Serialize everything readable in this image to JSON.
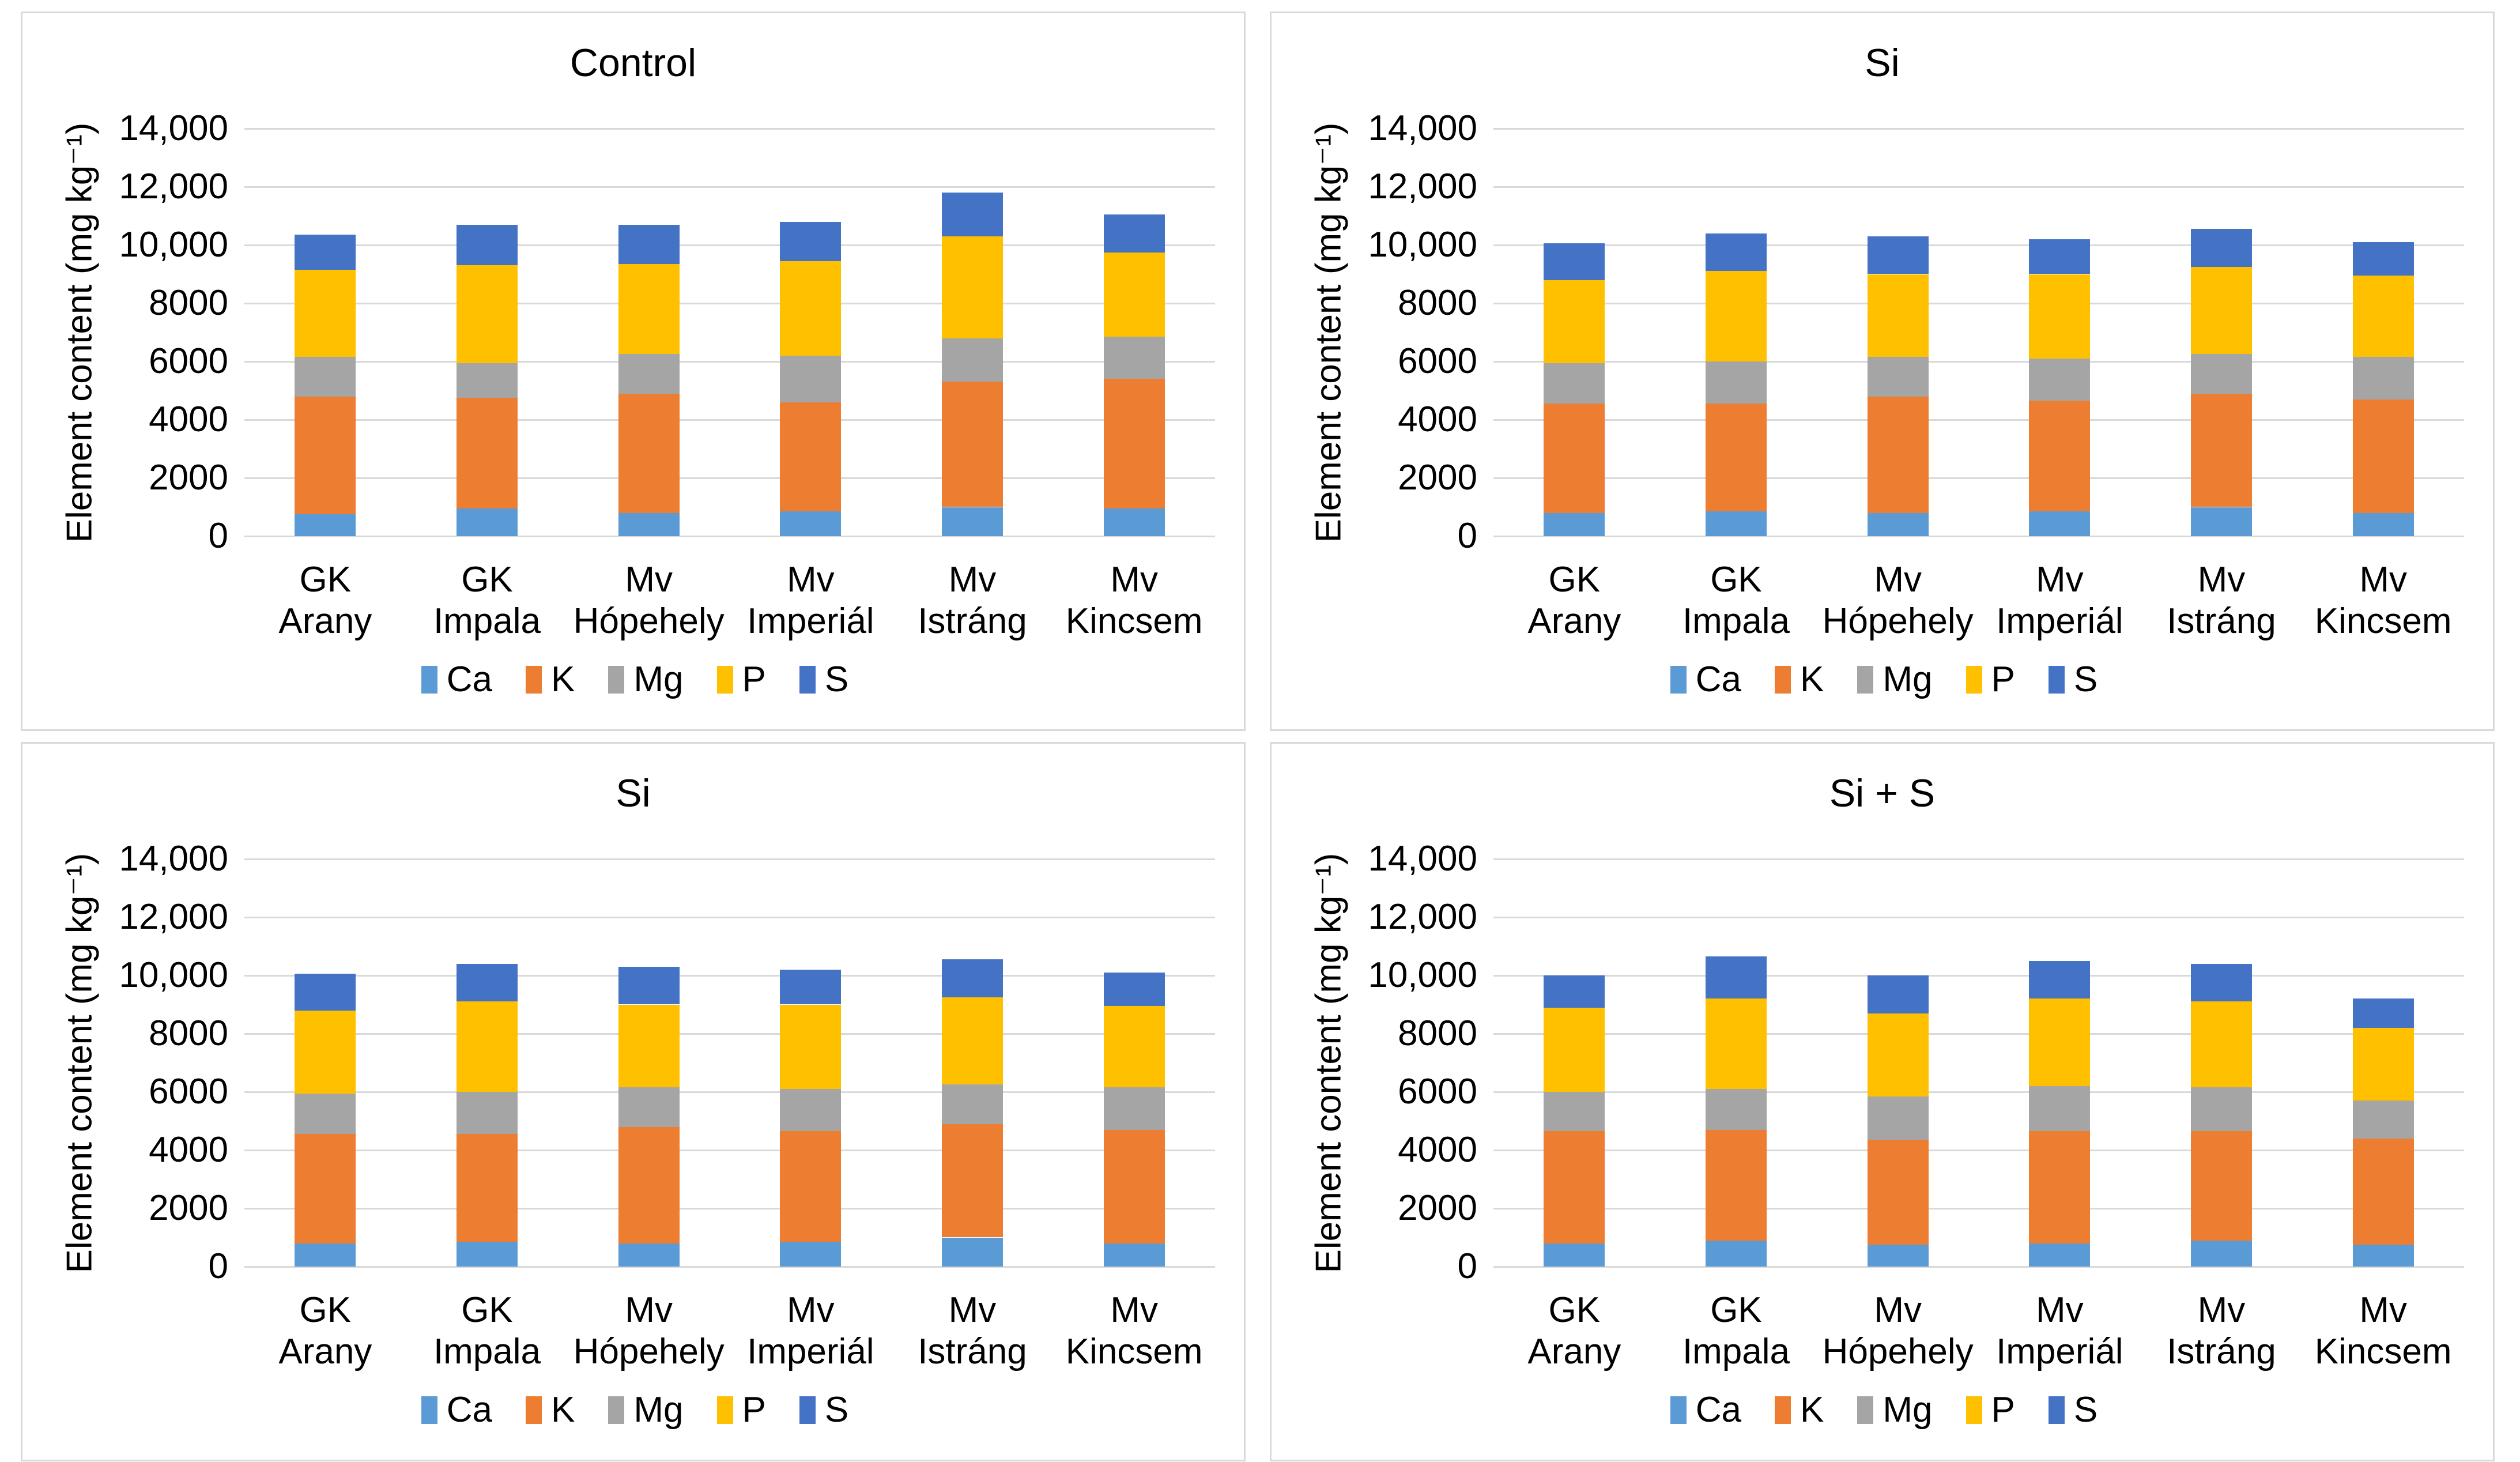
{
  "page": {
    "background": "#ffffff"
  },
  "series_colors": {
    "Ca": "#5B9BD5",
    "K": "#ED7D31",
    "Mg": "#A5A5A5",
    "P": "#FFC000",
    "S": "#4472C4"
  },
  "gridline_color": "#d9d9d9",
  "panel_border_color": "#d9d9d9",
  "legend_labels": [
    "Ca",
    "K",
    "Mg",
    "P",
    "S"
  ],
  "chart_data": [
    {
      "type": "bar",
      "stacked": true,
      "title": "Control",
      "xlabel": "",
      "ylabel": "Element content (mg kg⁻¹)",
      "ylim": [
        0,
        14000
      ],
      "y_ticks": [
        "0",
        "2000",
        "4000",
        "6000",
        "8000",
        "10,000",
        "12,000",
        "14,000"
      ],
      "grid": true,
      "legend_position": "bottom",
      "categories": [
        "GK Arany",
        "GK Impala",
        "Mv Hópehely",
        "Mv Imperiál",
        "Mv Istráng",
        "Mv Kincsem"
      ],
      "category_lines": [
        [
          "GK",
          "Arany"
        ],
        [
          "GK",
          "Impala"
        ],
        [
          "Mv",
          "Hópehely"
        ],
        [
          "Mv",
          "Imperiál"
        ],
        [
          "Mv",
          "Istráng"
        ],
        [
          "Mv",
          "Kincsem"
        ]
      ],
      "series": [
        {
          "name": "Ca",
          "values": [
            750,
            950,
            800,
            850,
            1000,
            950
          ]
        },
        {
          "name": "K",
          "values": [
            4050,
            3800,
            4100,
            3750,
            4300,
            4450
          ]
        },
        {
          "name": "Mg",
          "values": [
            1350,
            1200,
            1350,
            1600,
            1500,
            1450
          ]
        },
        {
          "name": "P",
          "values": [
            3000,
            3350,
            3100,
            3250,
            3500,
            2900
          ]
        },
        {
          "name": "S",
          "values": [
            1200,
            1400,
            1350,
            1350,
            1500,
            1300
          ]
        }
      ]
    },
    {
      "type": "bar",
      "stacked": true,
      "title": "Si",
      "xlabel": "",
      "ylabel": "Element content (mg kg⁻¹)",
      "ylim": [
        0,
        14000
      ],
      "y_ticks": [
        "0",
        "2000",
        "4000",
        "6000",
        "8000",
        "10,000",
        "12,000",
        "14,000"
      ],
      "grid": true,
      "legend_position": "bottom",
      "categories": [
        "GK Arany",
        "GK Impala",
        "Mv Hópehely",
        "Mv Imperiál",
        "Mv Istráng",
        "Mv Kincsem"
      ],
      "category_lines": [
        [
          "GK",
          "Arany"
        ],
        [
          "GK",
          "Impala"
        ],
        [
          "Mv",
          "Hópehely"
        ],
        [
          "Mv",
          "Imperiál"
        ],
        [
          "Mv",
          "Istráng"
        ],
        [
          "Mv",
          "Kincsem"
        ]
      ],
      "series": [
        {
          "name": "Ca",
          "values": [
            800,
            850,
            800,
            850,
            1000,
            800
          ]
        },
        {
          "name": "K",
          "values": [
            3750,
            3700,
            4000,
            3800,
            3900,
            3900
          ]
        },
        {
          "name": "Mg",
          "values": [
            1400,
            1450,
            1350,
            1450,
            1350,
            1450
          ]
        },
        {
          "name": "P",
          "values": [
            2850,
            3100,
            2850,
            2900,
            3000,
            2800
          ]
        },
        {
          "name": "S",
          "values": [
            1250,
            1300,
            1300,
            1200,
            1300,
            1150
          ]
        }
      ]
    },
    {
      "type": "bar",
      "stacked": true,
      "title": "Si",
      "xlabel": "",
      "ylabel": "Element content (mg kg⁻¹)",
      "ylim": [
        0,
        14000
      ],
      "y_ticks": [
        "0",
        "2000",
        "4000",
        "6000",
        "8000",
        "10,000",
        "12,000",
        "14,000"
      ],
      "grid": true,
      "legend_position": "bottom",
      "categories": [
        "GK Arany",
        "GK Impala",
        "Mv Hópehely",
        "Mv Imperiál",
        "Mv Istráng",
        "Mv Kincsem"
      ],
      "category_lines": [
        [
          "GK",
          "Arany"
        ],
        [
          "GK",
          "Impala"
        ],
        [
          "Mv",
          "Hópehely"
        ],
        [
          "Mv",
          "Imperiál"
        ],
        [
          "Mv",
          "Istráng"
        ],
        [
          "Mv",
          "Kincsem"
        ]
      ],
      "series": [
        {
          "name": "Ca",
          "values": [
            800,
            850,
            800,
            850,
            1000,
            800
          ]
        },
        {
          "name": "K",
          "values": [
            3750,
            3700,
            4000,
            3800,
            3900,
            3900
          ]
        },
        {
          "name": "Mg",
          "values": [
            1400,
            1450,
            1350,
            1450,
            1350,
            1450
          ]
        },
        {
          "name": "P",
          "values": [
            2850,
            3100,
            2850,
            2900,
            3000,
            2800
          ]
        },
        {
          "name": "S",
          "values": [
            1250,
            1300,
            1300,
            1200,
            1300,
            1150
          ]
        }
      ]
    },
    {
      "type": "bar",
      "stacked": true,
      "title": "Si + S",
      "xlabel": "",
      "ylabel": "Element content (mg kg⁻¹)",
      "ylim": [
        0,
        14000
      ],
      "y_ticks": [
        "0",
        "2000",
        "4000",
        "6000",
        "8000",
        "10,000",
        "12,000",
        "14,000"
      ],
      "grid": true,
      "legend_position": "bottom",
      "categories": [
        "GK Arany",
        "GK Impala",
        "Mv Hópehely",
        "Mv Imperiál",
        "Mv Istráng",
        "Mv Kincsem"
      ],
      "category_lines": [
        [
          "GK",
          "Arany"
        ],
        [
          "GK",
          "Impala"
        ],
        [
          "Mv",
          "Hópehely"
        ],
        [
          "Mv",
          "Imperiál"
        ],
        [
          "Mv",
          "Istráng"
        ],
        [
          "Mv",
          "Kincsem"
        ]
      ],
      "series": [
        {
          "name": "Ca",
          "values": [
            800,
            900,
            750,
            800,
            900,
            750
          ]
        },
        {
          "name": "K",
          "values": [
            3850,
            3800,
            3600,
            3850,
            3750,
            3650
          ]
        },
        {
          "name": "Mg",
          "values": [
            1350,
            1400,
            1500,
            1550,
            1500,
            1300
          ]
        },
        {
          "name": "P",
          "values": [
            2900,
            3100,
            2850,
            3000,
            2950,
            2500
          ]
        },
        {
          "name": "S",
          "values": [
            1100,
            1450,
            1300,
            1300,
            1300,
            1000
          ]
        }
      ]
    }
  ]
}
